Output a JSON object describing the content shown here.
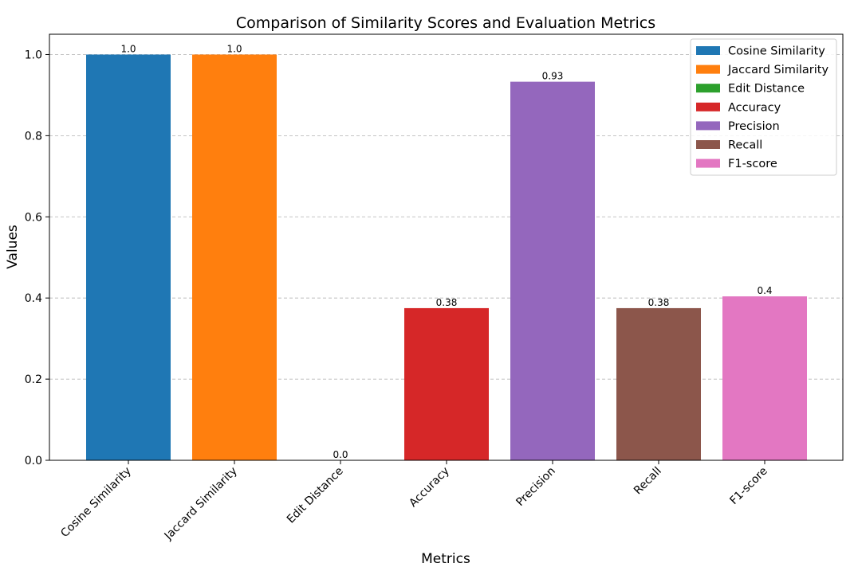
{
  "chart_data": {
    "type": "bar",
    "title": "Comparison of Similarity Scores and Evaluation Metrics",
    "xlabel": "Metrics",
    "ylabel": "Values",
    "categories": [
      "Cosine Similarity",
      "Jaccard Similarity",
      "Edit Distance",
      "Accuracy",
      "Precision",
      "Recall",
      "F1-score"
    ],
    "values": [
      1.0,
      1.0,
      0.0,
      0.375,
      0.933,
      0.375,
      0.404
    ],
    "value_labels": [
      "1.0",
      "1.0",
      "0.0",
      "0.38",
      "0.93",
      "0.38",
      "0.4"
    ],
    "colors": [
      "#1f77b4",
      "#ff7f0e",
      "#2ca02c",
      "#d62728",
      "#9467bd",
      "#8c564b",
      "#e377c2"
    ],
    "legend": [
      "Cosine Similarity",
      "Jaccard Similarity",
      "Edit Distance",
      "Accuracy",
      "Precision",
      "Recall",
      "F1-score"
    ],
    "legend_position": "top-right",
    "ylim": [
      0,
      1.05
    ],
    "yticks": [
      0.0,
      0.2,
      0.4,
      0.6,
      0.8,
      1.0
    ],
    "ytick_labels": [
      "0.0",
      "0.2",
      "0.4",
      "0.6",
      "0.8",
      "1.0"
    ],
    "grid": "y-dashed"
  }
}
